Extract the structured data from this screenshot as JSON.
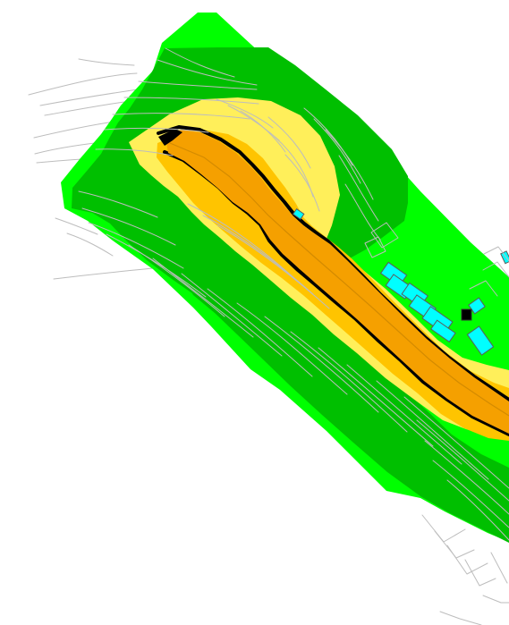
{
  "map": {
    "visible_text": [],
    "colors": {
      "background": "#ffffff",
      "outer_zone": "#00ff00",
      "middle_zone": "#00bf00",
      "inner_zone": "#ffef5a",
      "hot_zone": "#ffc400",
      "road_core": "#f5a000",
      "road_edge": "#000000",
      "buildings": "#00ffff",
      "contours": "#bdbdbd"
    },
    "layers": [
      {
        "name": "outer-zone",
        "color": "#00ff00"
      },
      {
        "name": "middle-zone",
        "color": "#00bf00"
      },
      {
        "name": "inner-zone",
        "color": "#ffef5a"
      },
      {
        "name": "road-core",
        "color": "#f5a000"
      },
      {
        "name": "buildings",
        "color": "#00ffff"
      },
      {
        "name": "contour-lines",
        "color": "#bdbdbd"
      }
    ]
  }
}
